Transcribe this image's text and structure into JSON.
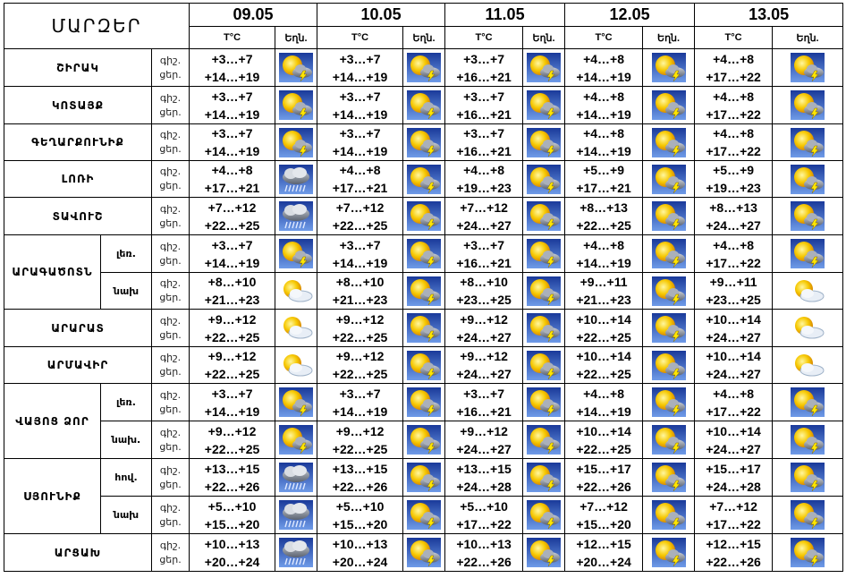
{
  "header": {
    "regions_title": "ՄԱՐԶԵՐ",
    "dates": [
      "09.05",
      "10.05",
      "11.05",
      "12.05",
      "13.05"
    ],
    "temp_label": "T°C",
    "weather_label": "Եղն."
  },
  "labels": {
    "night": "գիշ.",
    "day": "ցեր."
  },
  "rows": [
    {
      "region": "ՇԻՐԱԿ",
      "sub": "",
      "day_label": "ցեր.",
      "night": [
        "+3…+7",
        "+3…+7",
        "+3…+7",
        "+4…+8",
        "+4…+8"
      ],
      "day": [
        "+14…+19",
        "+14…+19",
        "+16…+21",
        "+14…+19",
        "+17…+22"
      ],
      "icons": [
        "sun-cloud-lightning-icon",
        "sun-cloud-lightning-icon",
        "sun-cloud-lightning-icon",
        "sun-cloud-lightning-icon",
        "sun-cloud-lightning-icon"
      ]
    },
    {
      "region": "ԿՈՏԱՅՔ",
      "sub": "",
      "day_label": "ցեր.",
      "night": [
        "+3…+7",
        "+3…+7",
        "+3…+7",
        "+4…+8",
        "+4…+8"
      ],
      "day": [
        "+14…+19",
        "+14…+19",
        "+16…+21",
        "+14…+19",
        "+17…+22"
      ],
      "icons": [
        "sun-cloud-lightning-icon",
        "sun-cloud-lightning-icon",
        "sun-cloud-lightning-icon",
        "sun-cloud-lightning-icon",
        "sun-cloud-lightning-icon"
      ]
    },
    {
      "region": "ԳԵՂԱՐՔՈՒՆԻՔ",
      "sub": "",
      "day_label": "ցեր.",
      "night": [
        "+3…+7",
        "+3…+7",
        "+3…+7",
        "+4…+8",
        "+4…+8"
      ],
      "day": [
        "+14…+19",
        "+14…+19",
        "+16…+21",
        "+14…+19",
        "+17…+22"
      ],
      "icons": [
        "sun-cloud-lightning-icon",
        "sun-cloud-lightning-icon",
        "sun-cloud-lightning-icon",
        "sun-cloud-lightning-icon",
        "sun-cloud-lightning-icon"
      ]
    },
    {
      "region": "ԼՈՌԻ",
      "sub": "",
      "day_label": "ցեր.",
      "night": [
        "+4…+8",
        "+4…+8",
        "+4…+8",
        "+5…+9",
        "+5…+9"
      ],
      "day": [
        "+17…+21",
        "+17…+21",
        "+19…+23",
        "+17…+21",
        "+19…+23"
      ],
      "icons": [
        "cloud-rain-icon",
        "sun-cloud-lightning-icon",
        "sun-cloud-lightning-icon",
        "sun-cloud-lightning-icon",
        "sun-cloud-lightning-icon"
      ]
    },
    {
      "region": "ՏԱՎՈՒՇ",
      "sub": "",
      "day_label": "ցեր.",
      "night": [
        "+7…+12",
        "+7…+12",
        "+7…+12",
        "+8…+13",
        "+8…+13"
      ],
      "day": [
        "+22…+25",
        "+22…+25",
        "+24…+27",
        "+22…+25",
        "+24…+27"
      ],
      "icons": [
        "cloud-rain-icon",
        "sun-cloud-lightning-icon",
        "sun-cloud-lightning-icon",
        "sun-cloud-lightning-icon",
        "sun-cloud-lightning-icon"
      ]
    },
    {
      "region": "ԱՐԱԳԱԾՈՏՆ",
      "sub": "լեռ.",
      "day_label": "ցեր.",
      "night": [
        "+3…+7",
        "+3…+7",
        "+3…+7",
        "+4…+8",
        "+4…+8"
      ],
      "day": [
        "+14…+19",
        "+14…+19",
        "+16…+21",
        "+14…+19",
        "+17…+22"
      ],
      "icons": [
        "sun-cloud-lightning-icon",
        "sun-cloud-lightning-icon",
        "sun-cloud-lightning-icon",
        "sun-cloud-lightning-icon",
        "sun-cloud-lightning-icon"
      ]
    },
    {
      "region": "",
      "sub": "նախ",
      "day_label": "ցեր.",
      "night": [
        "+8…+10",
        "+8…+10",
        "+8…+10",
        "+9…+11",
        "+9…+11"
      ],
      "day": [
        "+21…+23",
        "+21…+23",
        "+23…+25",
        "+21…+23",
        "+23…+25"
      ],
      "icons": [
        "sun-cloud-icon",
        "sun-cloud-lightning-icon",
        "sun-cloud-lightning-icon",
        "sun-cloud-lightning-icon",
        "sun-cloud-icon"
      ]
    },
    {
      "region": "ԱՐԱՐԱՏ",
      "sub": "",
      "day_label": "ցեր.",
      "night": [
        "+9…+12",
        "+9…+12",
        "+9…+12",
        "+10…+14",
        "+10…+14"
      ],
      "day": [
        "+22…+25",
        "+22…+25",
        "+24…+27",
        "+22…+25",
        "+24…+27"
      ],
      "icons": [
        "sun-cloud-icon",
        "sun-cloud-lightning-icon",
        "sun-cloud-lightning-icon",
        "sun-cloud-lightning-icon",
        "sun-cloud-icon"
      ]
    },
    {
      "region": "ԱՐՄԱՎԻՐ",
      "sub": "",
      "day_label": "ցեր.",
      "night": [
        "+9…+12",
        "+9…+12",
        "+9…+12",
        "+10…+14",
        "+10…+14"
      ],
      "day": [
        "+22…+25",
        "+22…+25",
        "+24…+27",
        "+22…+25",
        "+24…+27"
      ],
      "icons": [
        "sun-cloud-icon",
        "sun-cloud-lightning-icon",
        "sun-cloud-lightning-icon",
        "sun-cloud-lightning-icon",
        "sun-cloud-icon"
      ]
    },
    {
      "region": "ՎԱՅՈՑ ՁՈՐ",
      "sub": "լեռ.",
      "day_label": "ցեր.",
      "night": [
        "+3…+7",
        "+3…+7",
        "+3…+7",
        "+4…+8",
        "+4…+8"
      ],
      "day": [
        "+14…+19",
        "+14…+19",
        "+16…+21",
        "+14…+19",
        "+17…+22"
      ],
      "icons": [
        "sun-cloud-lightning-icon",
        "sun-cloud-lightning-icon",
        "sun-cloud-lightning-icon",
        "sun-cloud-lightning-icon",
        "sun-cloud-lightning-icon"
      ]
    },
    {
      "region": "",
      "sub": "նախ.",
      "day_label": "ցեր.",
      "night": [
        "+9…+12",
        "+9…+12",
        "+9…+12",
        "+10…+14",
        "+10…+14"
      ],
      "day": [
        "+22…+25",
        "+22…+25",
        "+24…+27",
        "+22…+25",
        "+24…+27"
      ],
      "icons": [
        "sun-cloud-lightning-icon",
        "sun-cloud-lightning-icon",
        "sun-cloud-lightning-icon",
        "sun-cloud-lightning-icon",
        "sun-cloud-lightning-icon"
      ]
    },
    {
      "region": "ՍՅՈՒՆԻՔ",
      "sub": "հով.",
      "day_label": "ցեր.",
      "night": [
        "+13…+15",
        "+13…+15",
        "+13…+15",
        "+15…+17",
        "+15…+17"
      ],
      "day": [
        "+22…+26",
        "+22…+26",
        "+24…+28",
        "+22…+26",
        "+24…+28"
      ],
      "icons": [
        "cloud-rain-icon",
        "sun-cloud-lightning-icon",
        "sun-cloud-lightning-icon",
        "sun-cloud-lightning-icon",
        "sun-cloud-lightning-icon"
      ]
    },
    {
      "region": "",
      "sub": "նախ",
      "day_label": "ցեր.",
      "night": [
        "+5…+10",
        "+5…+10",
        "+5…+10",
        "+7…+12",
        "+7…+12"
      ],
      "day": [
        "+15…+20",
        "+15…+20",
        "+17…+22",
        "+15…+20",
        "+17…+22"
      ],
      "icons": [
        "cloud-rain-icon",
        "sun-cloud-lightning-icon",
        "sun-cloud-lightning-icon",
        "sun-cloud-lightning-icon",
        "sun-cloud-lightning-icon"
      ]
    },
    {
      "region": "ԱՐՑԱԽ",
      "sub": "",
      "day_label": "ցեր.",
      "night": [
        "+10…+13",
        "+10…+13",
        "+10…+13",
        "+12…+15",
        "+12…+15"
      ],
      "day": [
        "+20…+24",
        "+20…+24",
        "+22…+26",
        "+20…+24",
        "+22…+26"
      ],
      "icons": [
        "cloud-rain-icon",
        "sun-cloud-lightning-icon",
        "sun-cloud-lightning-icon",
        "sun-cloud-lightning-icon",
        "sun-cloud-lightning-icon"
      ]
    }
  ]
}
